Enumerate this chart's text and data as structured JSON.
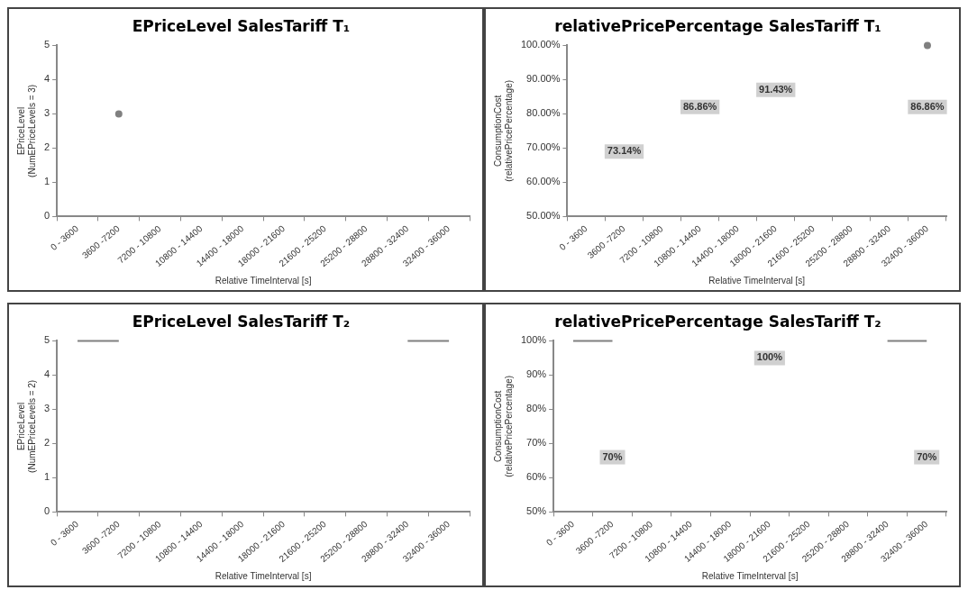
{
  "chart_data": [
    {
      "type": "line",
      "title": "EPriceLevel SalesTariff T₁",
      "xlabel": "Relative TimeInterval [s]",
      "ylabel": "EPriceLevel\n(NumEPriceLevels = 3)",
      "categories": [
        "0 - 3600",
        "3600 -7200",
        "7200 - 10800",
        "10800 - 14400",
        "14400 - 18000",
        "18000 - 21600",
        "21600 - 25200",
        "25200 - 28800",
        "28800 - 32400",
        "32400 - 36000"
      ],
      "series": [
        {
          "color": "#808080",
          "values": [
            null,
            3,
            null,
            null,
            null,
            null,
            null,
            null,
            null,
            null
          ]
        }
      ],
      "ylim": [
        0,
        5
      ],
      "yticks": [
        0,
        1,
        2,
        3,
        4,
        5
      ],
      "grid": false,
      "legend": false,
      "marker": "circle"
    },
    {
      "type": "line",
      "title": "relativePricePercentage SalesTariff T₁",
      "xlabel": "Relative TimeInterval [s]",
      "ylabel": "ConsumptionCost\n(relativePricePercentage)",
      "categories": [
        "0 - 3600",
        "3600 -7200",
        "7200 - 10800",
        "10800 - 14400",
        "14400 - 18000",
        "18000 - 21600",
        "21600 - 25200",
        "25200 - 28800",
        "28800 - 32400",
        "32400 - 36000"
      ],
      "series": [
        {
          "color": "#808080",
          "values": [
            null,
            null,
            null,
            null,
            null,
            null,
            null,
            null,
            null,
            100
          ]
        }
      ],
      "ylim": [
        50,
        100
      ],
      "yticks": [
        {
          "value": 50,
          "label": "50.00%"
        },
        {
          "value": 60,
          "label": "60.00%"
        },
        {
          "value": 70,
          "label": "70.00%"
        },
        {
          "value": 80,
          "label": "80.00%"
        },
        {
          "value": 90,
          "label": "90.00%"
        },
        {
          "value": 100,
          "label": "100.00%"
        }
      ],
      "annotations": [
        {
          "text": "73.14%",
          "x": "3600 -7200",
          "y": 69
        },
        {
          "text": "86.86%",
          "x": "10800 - 14400",
          "y": 82
        },
        {
          "text": "91.43%",
          "x": "18000 - 21600",
          "y": 87
        },
        {
          "text": "86.86%",
          "x": "32400 - 36000",
          "y": 82
        }
      ],
      "grid": false,
      "legend": false,
      "marker": "circle"
    },
    {
      "type": "line",
      "title": "EPriceLevel SalesTariff T₂",
      "xlabel": "Relative TimeInterval [s]",
      "ylabel": "EPriceLevel\n(NumEPriceLevels = 2)",
      "categories": [
        "0 - 3600",
        "3600 -7200",
        "7200 - 10800",
        "10800 - 14400",
        "14400 - 18000",
        "18000 - 21600",
        "21600 - 25200",
        "25200 - 28800",
        "28800 - 32400",
        "32400 - 36000"
      ],
      "series": [
        {
          "color": "#808080",
          "values": [
            5,
            5,
            null,
            null,
            null,
            null,
            null,
            null,
            5,
            5
          ]
        }
      ],
      "ylim": [
        0,
        5
      ],
      "yticks": [
        0,
        1,
        2,
        3,
        4,
        5
      ],
      "grid": false,
      "legend": false,
      "marker": "none"
    },
    {
      "type": "line",
      "title": "relativePricePercentage SalesTariff T₂",
      "xlabel": "Relative TimeInterval [s]",
      "ylabel": "ConsumptionCost\n(relativePricePercentage)",
      "categories": [
        "0 - 3600",
        "3600 -7200",
        "7200 - 10800",
        "10800 - 14400",
        "14400 - 18000",
        "18000 - 21600",
        "21600 - 25200",
        "25200 - 28800",
        "28800 - 32400",
        "32400 - 36000"
      ],
      "series": [
        {
          "color": "#808080",
          "values": [
            100,
            100,
            null,
            null,
            null,
            null,
            null,
            null,
            100,
            100
          ]
        }
      ],
      "ylim": [
        50,
        100
      ],
      "yticks": [
        {
          "value": 50,
          "label": "50%"
        },
        {
          "value": 60,
          "label": "60%"
        },
        {
          "value": 70,
          "label": "70%"
        },
        {
          "value": 80,
          "label": "80%"
        },
        {
          "value": 90,
          "label": "90%"
        },
        {
          "value": 100,
          "label": "100%"
        }
      ],
      "annotations": [
        {
          "text": "70%",
          "x": "3600 -7200",
          "y": 66
        },
        {
          "text": "100%",
          "x": "18000 - 21600",
          "y": 95
        },
        {
          "text": "70%",
          "x": "32400 - 36000",
          "y": 66
        }
      ],
      "grid": false,
      "legend": false,
      "marker": "none"
    }
  ]
}
